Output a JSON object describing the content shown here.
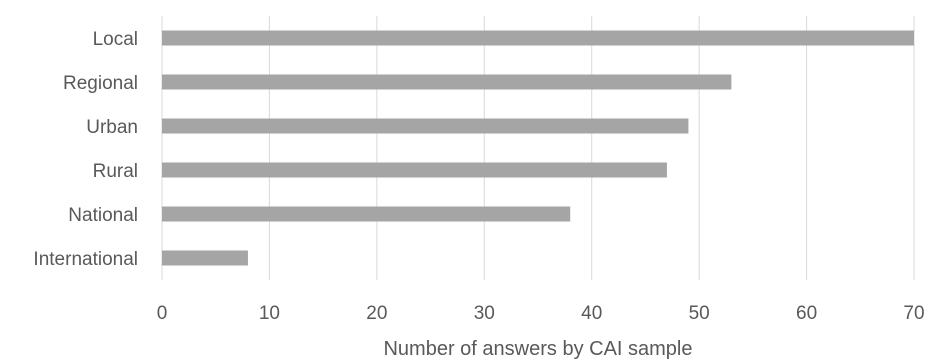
{
  "chart_data": {
    "type": "bar",
    "orientation": "horizontal",
    "categories": [
      "Local",
      "Regional",
      "Urban",
      "Rural",
      "National",
      "International"
    ],
    "values": [
      70,
      53,
      49,
      47,
      38,
      8
    ],
    "xlabel": "Number of answers by CAI sample",
    "xlim": [
      0,
      70
    ],
    "xticks": [
      "0",
      "10",
      "20",
      "30",
      "40",
      "50",
      "60",
      "70"
    ],
    "grid": "vertical",
    "bar_color": "#a5a5a5"
  }
}
